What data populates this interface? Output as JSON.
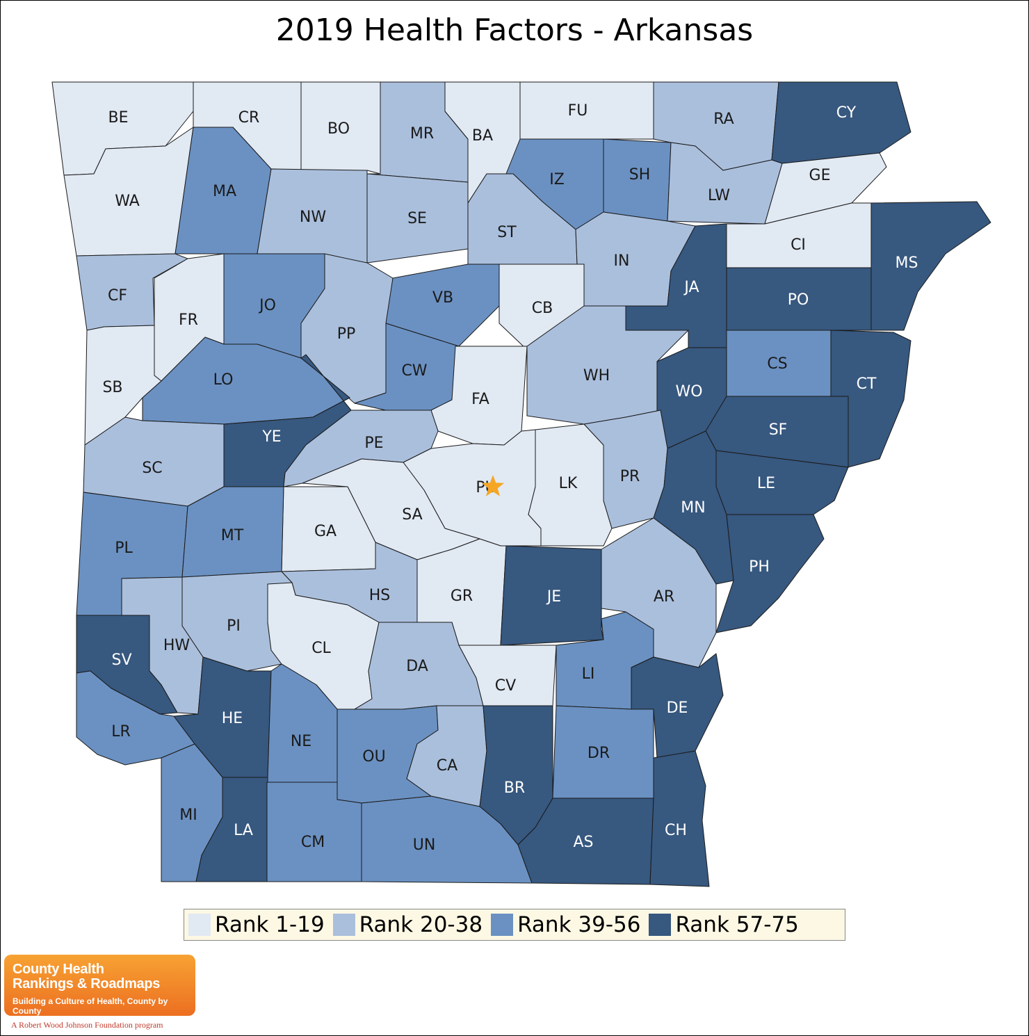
{
  "title": "2019 Health Factors - Arkansas",
  "colors": {
    "rank_1_19": "#e1e9f3",
    "rank_20_38": "#aabfdc",
    "rank_39_56": "#6b91c2",
    "rank_57_75": "#37587f",
    "border": "#1a1a1a",
    "star": "#f5a623",
    "label_dark": "#1a1a1a",
    "label_light": "#ffffff"
  },
  "legend": [
    {
      "label": "Rank 1-19",
      "color": "#e1e9f3"
    },
    {
      "label": "Rank 20-38",
      "color": "#aabfdc"
    },
    {
      "label": "Rank 39-56",
      "color": "#6b91c2"
    },
    {
      "label": "Rank 57-75",
      "color": "#37587f"
    }
  ],
  "counties": [
    {
      "abbr": "BE",
      "tier": 1
    },
    {
      "abbr": "CR",
      "tier": 1
    },
    {
      "abbr": "BO",
      "tier": 1
    },
    {
      "abbr": "MR",
      "tier": 2
    },
    {
      "abbr": "BA",
      "tier": 1
    },
    {
      "abbr": "FU",
      "tier": 1
    },
    {
      "abbr": "RA",
      "tier": 2
    },
    {
      "abbr": "CY",
      "tier": 4
    },
    {
      "abbr": "WA",
      "tier": 1
    },
    {
      "abbr": "MA",
      "tier": 3
    },
    {
      "abbr": "NW",
      "tier": 2
    },
    {
      "abbr": "SE",
      "tier": 2
    },
    {
      "abbr": "IZ",
      "tier": 3
    },
    {
      "abbr": "SH",
      "tier": 3
    },
    {
      "abbr": "LW",
      "tier": 2
    },
    {
      "abbr": "GE",
      "tier": 1
    },
    {
      "abbr": "ST",
      "tier": 2
    },
    {
      "abbr": "CI",
      "tier": 1
    },
    {
      "abbr": "MS",
      "tier": 4
    },
    {
      "abbr": "IN",
      "tier": 2
    },
    {
      "abbr": "CF",
      "tier": 2
    },
    {
      "abbr": "FR",
      "tier": 1
    },
    {
      "abbr": "JO",
      "tier": 3
    },
    {
      "abbr": "PP",
      "tier": 2
    },
    {
      "abbr": "VB",
      "tier": 3
    },
    {
      "abbr": "CB",
      "tier": 1
    },
    {
      "abbr": "JA",
      "tier": 4
    },
    {
      "abbr": "PO",
      "tier": 4
    },
    {
      "abbr": "SB",
      "tier": 1
    },
    {
      "abbr": "LO",
      "tier": 3
    },
    {
      "abbr": "CW",
      "tier": 3
    },
    {
      "abbr": "FA",
      "tier": 1
    },
    {
      "abbr": "WH",
      "tier": 2
    },
    {
      "abbr": "WO",
      "tier": 4
    },
    {
      "abbr": "CS",
      "tier": 3
    },
    {
      "abbr": "CT",
      "tier": 4
    },
    {
      "abbr": "YE",
      "tier": 4
    },
    {
      "abbr": "PE",
      "tier": 2
    },
    {
      "abbr": "SF",
      "tier": 4
    },
    {
      "abbr": "SC",
      "tier": 2
    },
    {
      "abbr": "PU",
      "tier": 1
    },
    {
      "abbr": "LK",
      "tier": 1
    },
    {
      "abbr": "PR",
      "tier": 2
    },
    {
      "abbr": "LE",
      "tier": 4
    },
    {
      "abbr": "SA",
      "tier": 1
    },
    {
      "abbr": "GA",
      "tier": 1
    },
    {
      "abbr": "MN",
      "tier": 4
    },
    {
      "abbr": "PL",
      "tier": 3
    },
    {
      "abbr": "MT",
      "tier": 3
    },
    {
      "abbr": "PH",
      "tier": 4
    },
    {
      "abbr": "HS",
      "tier": 2
    },
    {
      "abbr": "GR",
      "tier": 1
    },
    {
      "abbr": "JE",
      "tier": 4
    },
    {
      "abbr": "AR",
      "tier": 2
    },
    {
      "abbr": "HW",
      "tier": 2
    },
    {
      "abbr": "PI",
      "tier": 2
    },
    {
      "abbr": "CL",
      "tier": 1
    },
    {
      "abbr": "SV",
      "tier": 4
    },
    {
      "abbr": "DA",
      "tier": 2
    },
    {
      "abbr": "CV",
      "tier": 1
    },
    {
      "abbr": "LI",
      "tier": 3
    },
    {
      "abbr": "DE",
      "tier": 4
    },
    {
      "abbr": "HE",
      "tier": 4
    },
    {
      "abbr": "LR",
      "tier": 3
    },
    {
      "abbr": "NE",
      "tier": 3
    },
    {
      "abbr": "OU",
      "tier": 3
    },
    {
      "abbr": "CA",
      "tier": 2
    },
    {
      "abbr": "DR",
      "tier": 3
    },
    {
      "abbr": "BR",
      "tier": 4
    },
    {
      "abbr": "MI",
      "tier": 3
    },
    {
      "abbr": "LA",
      "tier": 4
    },
    {
      "abbr": "CM",
      "tier": 3
    },
    {
      "abbr": "UN",
      "tier": 3
    },
    {
      "abbr": "AS",
      "tier": 4
    },
    {
      "abbr": "CH",
      "tier": 4
    }
  ],
  "capital_county": "PU",
  "logo": {
    "line1": "County Health",
    "line2": "Rankings & Roadmaps",
    "tagline": "Building a Culture of Health, County by County",
    "footer": "A Robert Wood Johnson Foundation program"
  }
}
